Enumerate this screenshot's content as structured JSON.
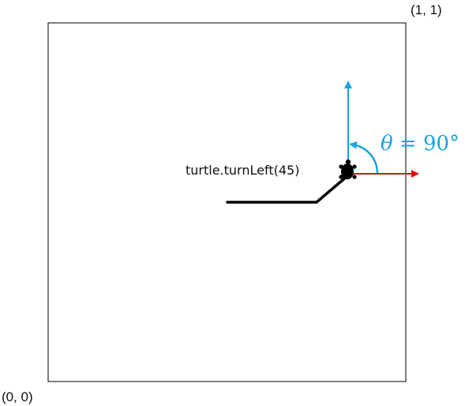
{
  "labels": {
    "top_right": "(1, 1)",
    "bottom_left": "(0, 0)",
    "command": "turtle.turnLeft(45)",
    "angle_symbol": "θ",
    "angle_value": " = 90°"
  },
  "colors": {
    "heading_arrow": "#1aa3e0",
    "x_axis_arrow": "#e01010",
    "path": "#000000",
    "frame": "#000000"
  }
}
